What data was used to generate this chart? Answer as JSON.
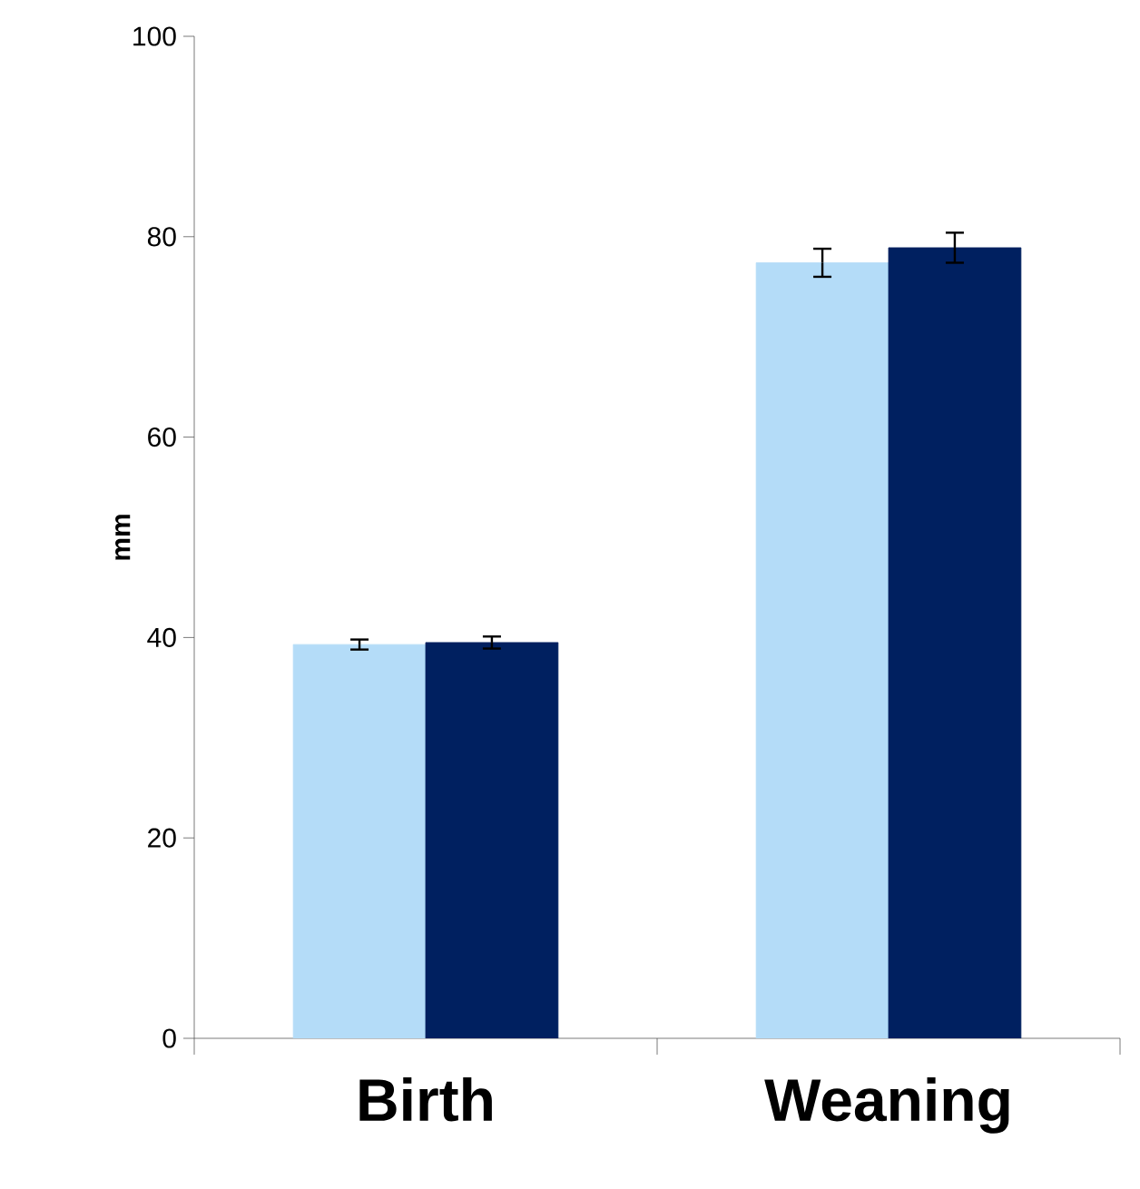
{
  "chart_data": {
    "type": "bar",
    "ylabel": "mm",
    "categories": [
      "Birth",
      "Weaning"
    ],
    "series": [
      {
        "color": "#b4dcf8",
        "values": [
          39.3,
          77.4
        ],
        "errors": [
          0.5,
          1.4
        ]
      },
      {
        "color": "#002060",
        "values": [
          39.5,
          78.9
        ],
        "errors": [
          0.6,
          1.5
        ]
      }
    ],
    "ylim": [
      0,
      100
    ],
    "yticks": [
      0,
      20,
      40,
      60,
      80,
      100
    ]
  }
}
